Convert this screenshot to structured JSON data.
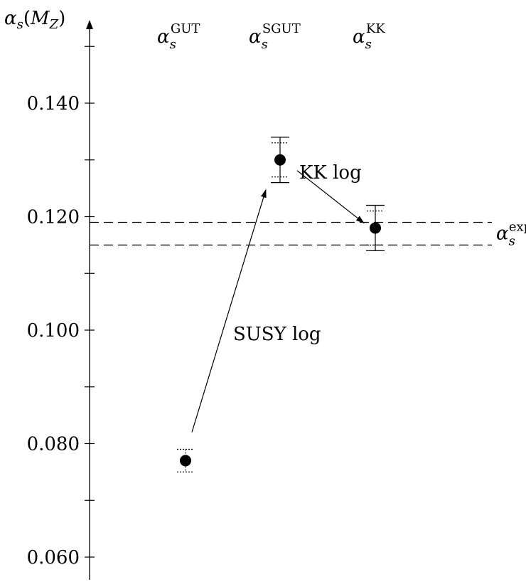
{
  "chart_data": {
    "type": "scatter",
    "y_axis": {
      "label_symbol": "α",
      "label_sub": "s",
      "label_arg": "M",
      "label_arg_sub": "Z",
      "range": [
        0.055,
        0.155
      ],
      "labeled_ticks": [
        {
          "value": 0.14,
          "label": "0.140"
        },
        {
          "value": 0.12,
          "label": "0.120"
        },
        {
          "value": 0.1,
          "label": "0.100"
        },
        {
          "value": 0.08,
          "label": "0.080"
        },
        {
          "value": 0.06,
          "label": "0.060"
        }
      ],
      "minor_ticks": [
        0.15,
        0.13,
        0.11,
        0.09,
        0.07
      ]
    },
    "categories": [
      {
        "symbol": "α",
        "sub": "s",
        "sup": "GUT"
      },
      {
        "symbol": "α",
        "sub": "s",
        "sup": "SGUT"
      },
      {
        "symbol": "α",
        "sub": "s",
        "sup": "KK"
      }
    ],
    "points": [
      {
        "category": 0,
        "value": 0.077,
        "err_solid": null,
        "err_dotted": [
          0.075,
          0.079
        ]
      },
      {
        "category": 1,
        "value": 0.13,
        "err_solid": [
          0.126,
          0.134
        ],
        "err_dotted": [
          0.127,
          0.133
        ]
      },
      {
        "category": 2,
        "value": 0.118,
        "err_solid": [
          0.114,
          0.122
        ],
        "err_dotted": [
          0.115,
          0.121
        ]
      }
    ],
    "experimental_band": {
      "lower": 0.115,
      "upper": 0.119,
      "label_symbol": "α",
      "label_sub": "s",
      "label_sup": "exp"
    },
    "annotations": [
      {
        "text": "SUSY log",
        "from": 0,
        "to": 1
      },
      {
        "text": "KK log",
        "from": 1,
        "to": 2
      }
    ]
  }
}
